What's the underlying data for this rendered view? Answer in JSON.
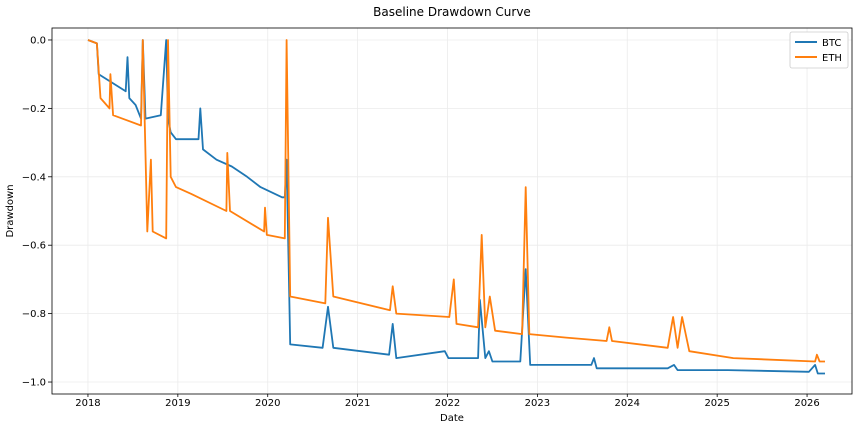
{
  "chart_data": {
    "type": "line",
    "title": "Baseline Drawdown Curve",
    "xlabel": "Date",
    "ylabel": "Drawdown",
    "xlim": [
      2017.6,
      2026.5
    ],
    "ylim": [
      -1.035,
      0.035
    ],
    "xticks": [
      2018,
      2019,
      2020,
      2021,
      2022,
      2023,
      2024,
      2025,
      2026
    ],
    "xtick_labels": [
      "2018",
      "2019",
      "2020",
      "2021",
      "2022",
      "2023",
      "2024",
      "2025",
      "2026"
    ],
    "yticks": [
      0.0,
      -0.2,
      -0.4,
      -0.6,
      -0.8,
      -1.0
    ],
    "ytick_labels": [
      "0.0",
      "−0.2",
      "−0.4",
      "−0.6",
      "−0.8",
      "−1.0"
    ],
    "grid": true,
    "legend_position": "top-right",
    "series": [
      {
        "name": "BTC",
        "color": "#1f77b4",
        "x": [
          2018.0,
          2018.1,
          2018.12,
          2018.42,
          2018.44,
          2018.46,
          2018.53,
          2018.59,
          2018.61,
          2018.64,
          2018.81,
          2018.87,
          2018.89,
          2018.92,
          2018.98,
          2019.23,
          2019.25,
          2019.28,
          2019.43,
          2019.6,
          2019.77,
          2019.92,
          2020.16,
          2020.19,
          2020.21,
          2020.25,
          2020.61,
          2020.67,
          2020.73,
          2021.35,
          2021.39,
          2021.43,
          2021.97,
          2022.01,
          2022.34,
          2022.36,
          2022.42,
          2022.46,
          2022.5,
          2022.81,
          2022.87,
          2022.92,
          2023.6,
          2023.63,
          2023.66,
          2024.45,
          2024.52,
          2024.56,
          2025.12,
          2026.02,
          2026.09,
          2026.12,
          2026.2
        ],
        "y": [
          0.0,
          -0.01,
          -0.1,
          -0.15,
          -0.05,
          -0.17,
          -0.19,
          -0.23,
          0.0,
          -0.23,
          -0.22,
          0.0,
          -0.23,
          -0.27,
          -0.29,
          -0.29,
          -0.2,
          -0.32,
          -0.35,
          -0.37,
          -0.4,
          -0.43,
          -0.46,
          -0.46,
          -0.35,
          -0.89,
          -0.9,
          -0.78,
          -0.9,
          -0.92,
          -0.83,
          -0.93,
          -0.91,
          -0.93,
          -0.93,
          -0.76,
          -0.93,
          -0.91,
          -0.94,
          -0.94,
          -0.67,
          -0.95,
          -0.95,
          -0.93,
          -0.96,
          -0.96,
          -0.95,
          -0.965,
          -0.965,
          -0.97,
          -0.95,
          -0.975,
          -0.975
        ]
      },
      {
        "name": "ETH",
        "color": "#ff7f0e",
        "x": [
          2018.0,
          2018.1,
          2018.14,
          2018.24,
          2018.25,
          2018.28,
          2018.59,
          2018.61,
          2018.66,
          2018.7,
          2018.72,
          2018.87,
          2018.89,
          2018.92,
          2018.98,
          2019.15,
          2019.54,
          2019.55,
          2019.58,
          2019.96,
          2019.97,
          2019.99,
          2020.19,
          2020.21,
          2020.25,
          2020.64,
          2020.67,
          2020.73,
          2021.36,
          2021.39,
          2021.43,
          2022.02,
          2022.07,
          2022.1,
          2022.34,
          2022.38,
          2022.42,
          2022.47,
          2022.53,
          2022.83,
          2022.87,
          2022.91,
          2023.32,
          2023.77,
          2023.8,
          2023.83,
          2024.45,
          2024.51,
          2024.56,
          2024.61,
          2024.69,
          2025.18,
          2026.09,
          2026.11,
          2026.14,
          2026.2
        ],
        "y": [
          0.0,
          -0.01,
          -0.17,
          -0.2,
          -0.1,
          -0.22,
          -0.25,
          0.0,
          -0.56,
          -0.35,
          -0.56,
          -0.58,
          0.0,
          -0.4,
          -0.43,
          -0.45,
          -0.5,
          -0.33,
          -0.5,
          -0.56,
          -0.49,
          -0.57,
          -0.58,
          0.0,
          -0.75,
          -0.77,
          -0.52,
          -0.75,
          -0.79,
          -0.72,
          -0.8,
          -0.81,
          -0.7,
          -0.83,
          -0.84,
          -0.57,
          -0.84,
          -0.75,
          -0.85,
          -0.86,
          -0.43,
          -0.86,
          -0.87,
          -0.88,
          -0.84,
          -0.88,
          -0.9,
          -0.81,
          -0.9,
          -0.81,
          -0.91,
          -0.93,
          -0.94,
          -0.92,
          -0.94,
          -0.94
        ]
      }
    ]
  }
}
